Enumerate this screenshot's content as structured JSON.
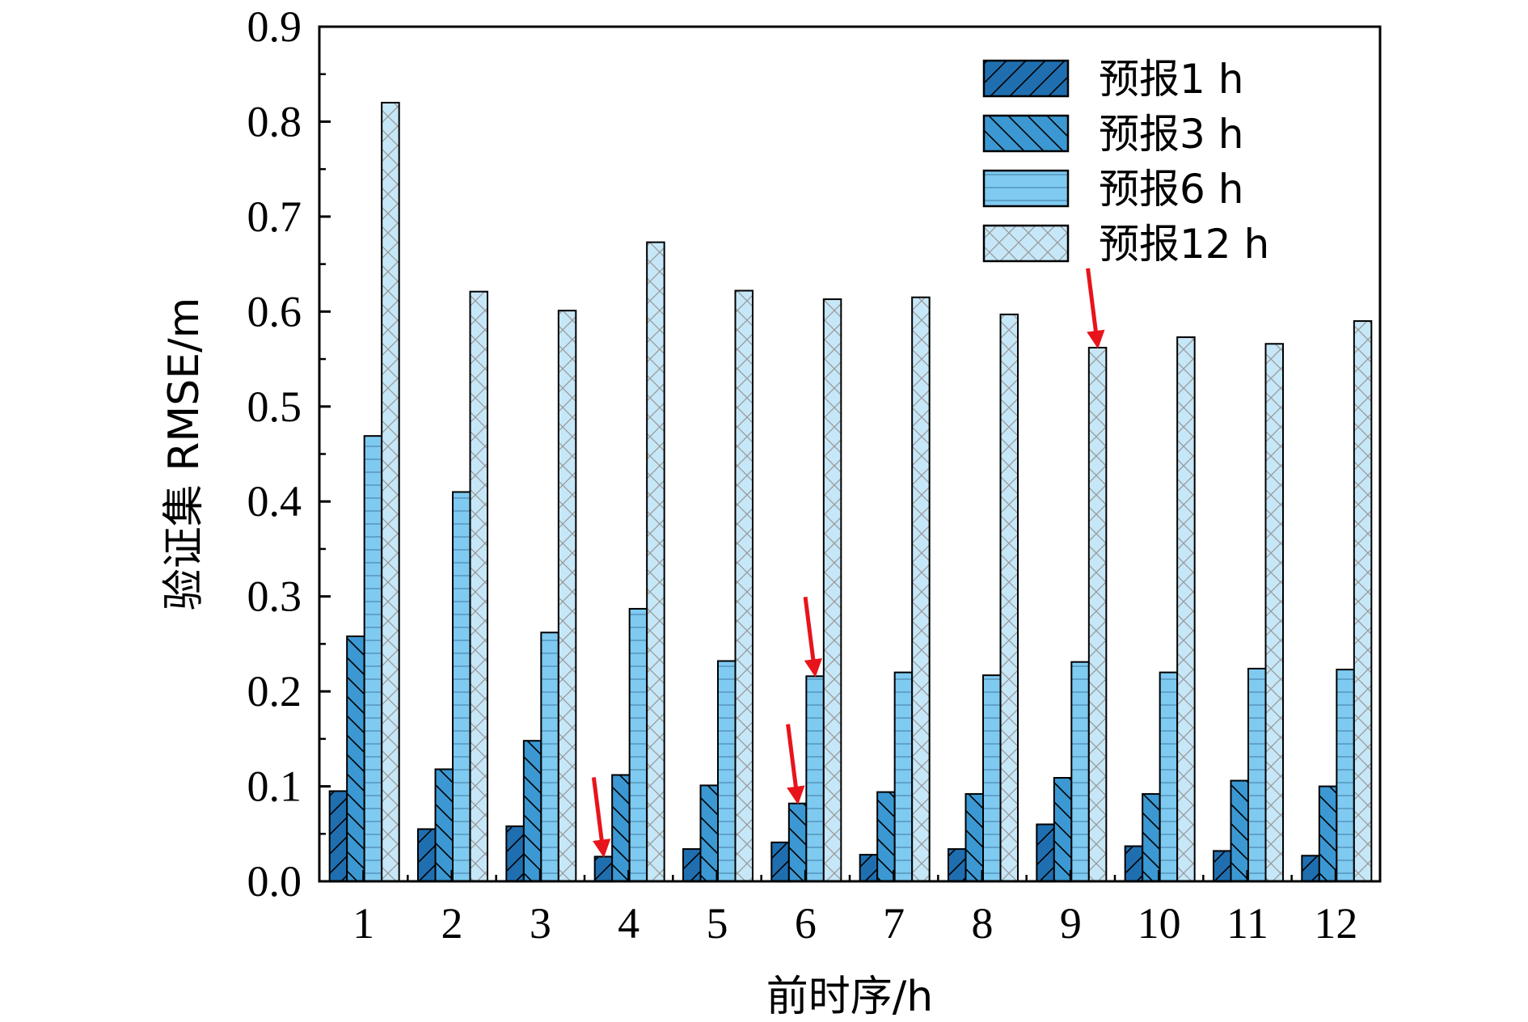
{
  "chart_data": {
    "type": "bar",
    "xlabel": "前时序/h",
    "ylabel": "验证集 RMSE/m",
    "ylim": [
      0,
      0.9
    ],
    "yticks": [
      "0.0",
      "0.1",
      "0.2",
      "0.3",
      "0.4",
      "0.5",
      "0.6",
      "0.7",
      "0.8",
      "0.9"
    ],
    "categories": [
      "1",
      "2",
      "3",
      "4",
      "5",
      "6",
      "7",
      "8",
      "9",
      "10",
      "11",
      "12"
    ],
    "legend_position": "top-right",
    "grid": false,
    "series": [
      {
        "name": "预报1 h",
        "color": "#1f6fb0",
        "pattern": "diag-forward",
        "values": [
          0.095,
          0.055,
          0.058,
          0.026,
          0.034,
          0.041,
          0.028,
          0.034,
          0.06,
          0.037,
          0.032,
          0.027
        ]
      },
      {
        "name": "预报3 h",
        "color": "#3b98d2",
        "pattern": "diag-backward",
        "values": [
          0.258,
          0.118,
          0.148,
          0.112,
          0.101,
          0.082,
          0.094,
          0.092,
          0.109,
          0.092,
          0.106,
          0.1
        ]
      },
      {
        "name": "预报6 h",
        "color": "#7fcaf0",
        "pattern": "horizontal",
        "values": [
          0.469,
          0.41,
          0.262,
          0.287,
          0.232,
          0.216,
          0.22,
          0.217,
          0.231,
          0.22,
          0.224,
          0.223
        ]
      },
      {
        "name": "预报12 h",
        "color": "#c6e7f8",
        "pattern": "crosshatch",
        "values": [
          0.82,
          0.621,
          0.601,
          0.673,
          0.622,
          0.613,
          0.615,
          0.597,
          0.562,
          0.573,
          0.566,
          0.59
        ]
      }
    ],
    "annotations": [
      {
        "type": "arrow",
        "category": "4",
        "series": "预报1 h",
        "color": "#e8141b"
      },
      {
        "type": "arrow",
        "category": "6",
        "series": "预报3 h",
        "color": "#e8141b"
      },
      {
        "type": "arrow",
        "category": "6",
        "series": "预报6 h",
        "color": "#e8141b"
      },
      {
        "type": "arrow",
        "category": "9",
        "series": "预报12 h",
        "color": "#e8141b"
      }
    ]
  }
}
